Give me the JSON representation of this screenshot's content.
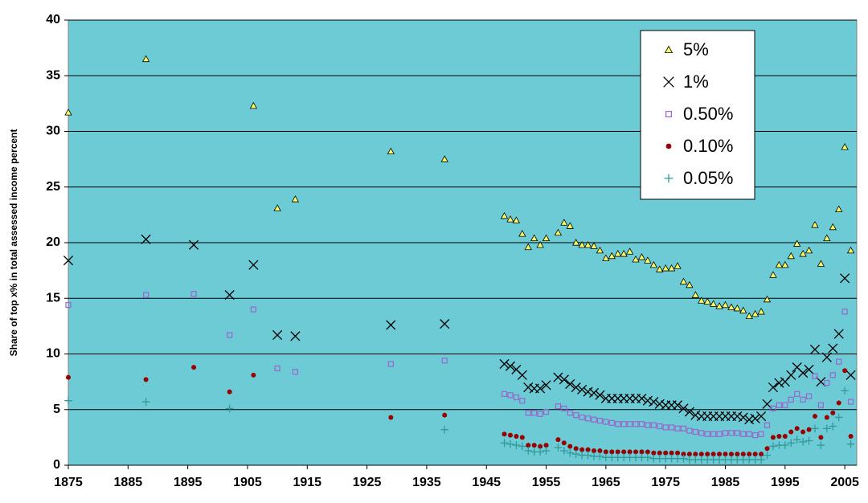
{
  "chart_data": {
    "type": "scatter",
    "y_label": "Share of top x% in total assessed income percent",
    "x": [
      1875,
      1888,
      1896,
      1902,
      1906,
      1910,
      1913,
      1929,
      1938,
      1948,
      1949,
      1950,
      1951,
      1952,
      1953,
      1954,
      1955,
      1956,
      1957,
      1958,
      1959,
      1960,
      1961,
      1962,
      1963,
      1964,
      1965,
      1966,
      1967,
      1968,
      1969,
      1970,
      1971,
      1972,
      1973,
      1974,
      1975,
      1976,
      1977,
      1978,
      1979,
      1980,
      1981,
      1982,
      1983,
      1984,
      1985,
      1986,
      1987,
      1988,
      1989,
      1990,
      1991,
      1992,
      1993,
      1994,
      1995,
      1996,
      1997,
      1998,
      1999,
      2000,
      2001,
      2002,
      2003,
      2004,
      2005,
      2006
    ],
    "series": [
      {
        "name": "5%",
        "color": "#ffff66",
        "marker": "triangle",
        "values": [
          31.7,
          36.5,
          null,
          null,
          32.3,
          23.1,
          23.9,
          28.2,
          27.5,
          22.4,
          22.1,
          22.0,
          20.8,
          19.6,
          20.4,
          19.8,
          20.4,
          null,
          20.9,
          21.8,
          21.5,
          20.0,
          19.8,
          19.8,
          19.7,
          19.3,
          18.6,
          18.8,
          19.0,
          19.0,
          19.2,
          18.5,
          18.7,
          18.4,
          18.0,
          17.6,
          17.7,
          17.7,
          17.9,
          16.5,
          16.2,
          15.3,
          14.8,
          14.7,
          14.5,
          14.3,
          14.4,
          14.2,
          14.1,
          13.9,
          13.4,
          13.6,
          13.8,
          14.9,
          17.1,
          18.0,
          18.0,
          18.8,
          19.9,
          19.0,
          19.3,
          21.6,
          18.1,
          20.4,
          21.4,
          23.0,
          28.6,
          19.3
        ]
      },
      {
        "name": "1%",
        "color": "#000000",
        "marker": "x",
        "values": [
          18.4,
          20.3,
          19.8,
          15.3,
          18.0,
          11.7,
          11.6,
          12.6,
          12.7,
          9.1,
          8.9,
          8.6,
          8.1,
          7.0,
          6.9,
          6.9,
          7.2,
          null,
          7.9,
          7.7,
          7.3,
          7.0,
          6.8,
          6.6,
          6.5,
          6.3,
          6.0,
          6.0,
          6.0,
          6.0,
          6.0,
          6.0,
          6.0,
          5.8,
          5.7,
          5.5,
          5.4,
          5.4,
          5.4,
          5.1,
          4.8,
          4.5,
          4.4,
          4.4,
          4.4,
          4.4,
          4.4,
          4.4,
          4.4,
          4.3,
          4.1,
          4.2,
          4.4,
          5.5,
          7.0,
          7.4,
          7.5,
          8.1,
          8.8,
          8.3,
          8.6,
          10.4,
          7.5,
          9.7,
          10.5,
          11.8,
          16.8,
          8.1
        ]
      },
      {
        "name": "0.50%",
        "color": "#9966cc",
        "marker": "square",
        "values": [
          14.4,
          15.3,
          15.4,
          11.7,
          14.0,
          8.7,
          8.4,
          9.1,
          9.4,
          6.4,
          6.3,
          6.1,
          5.8,
          4.7,
          4.7,
          4.6,
          4.8,
          null,
          5.3,
          5.1,
          4.7,
          4.5,
          4.3,
          4.2,
          4.1,
          4.0,
          3.9,
          3.8,
          3.7,
          3.7,
          3.7,
          3.7,
          3.7,
          3.6,
          3.6,
          3.5,
          3.4,
          3.4,
          3.3,
          3.3,
          3.1,
          3.0,
          2.9,
          2.8,
          2.8,
          2.8,
          2.9,
          2.9,
          2.9,
          2.8,
          2.8,
          2.7,
          2.8,
          3.6,
          5.1,
          5.4,
          5.4,
          5.9,
          6.4,
          5.9,
          6.2,
          8.0,
          5.4,
          7.4,
          8.1,
          9.3,
          13.8,
          5.7
        ]
      },
      {
        "name": "0.10%",
        "color": "#990000",
        "marker": "circle",
        "values": [
          7.9,
          7.7,
          8.8,
          6.6,
          8.1,
          null,
          null,
          4.3,
          4.5,
          2.8,
          2.7,
          2.6,
          2.5,
          1.8,
          1.8,
          1.7,
          1.8,
          null,
          2.3,
          2.0,
          1.7,
          1.5,
          1.4,
          1.4,
          1.3,
          1.3,
          1.2,
          1.2,
          1.2,
          1.2,
          1.2,
          1.2,
          1.2,
          1.2,
          1.1,
          1.1,
          1.1,
          1.1,
          1.1,
          1.0,
          1.0,
          1.0,
          1.0,
          1.0,
          1.0,
          1.0,
          1.0,
          1.0,
          1.0,
          1.0,
          1.0,
          1.0,
          1.0,
          1.5,
          2.5,
          2.6,
          2.6,
          3.0,
          3.3,
          3.0,
          3.2,
          4.4,
          2.5,
          4.3,
          4.7,
          5.6,
          8.5,
          2.6
        ]
      },
      {
        "name": "0.05%",
        "color": "#339999",
        "marker": "plus",
        "values": [
          5.8,
          5.7,
          null,
          5.1,
          null,
          null,
          null,
          null,
          3.2,
          2.0,
          1.9,
          1.8,
          1.7,
          1.3,
          1.2,
          1.2,
          1.3,
          null,
          1.6,
          1.3,
          1.1,
          1.0,
          0.9,
          0.9,
          0.8,
          0.8,
          0.7,
          0.7,
          0.7,
          0.7,
          0.7,
          0.7,
          0.7,
          0.7,
          0.6,
          0.6,
          0.6,
          0.6,
          0.6,
          0.6,
          0.5,
          0.5,
          0.5,
          0.5,
          0.5,
          0.5,
          0.5,
          0.5,
          0.5,
          0.5,
          0.5,
          0.5,
          0.5,
          0.9,
          1.7,
          1.8,
          1.8,
          2.0,
          2.3,
          2.1,
          2.2,
          3.3,
          1.8,
          3.3,
          3.5,
          4.3,
          6.7,
          1.9
        ]
      }
    ],
    "xlim": [
      1875,
      2007
    ],
    "xticks": [
      1875,
      1885,
      1895,
      1905,
      1915,
      1925,
      1935,
      1945,
      1955,
      1965,
      1975,
      1985,
      1995,
      2005
    ],
    "ylim": [
      0,
      40
    ],
    "yticks": [
      0,
      5,
      10,
      15,
      20,
      25,
      30,
      35,
      40
    ],
    "grid": true,
    "plot_color": "#6dcbd6"
  }
}
